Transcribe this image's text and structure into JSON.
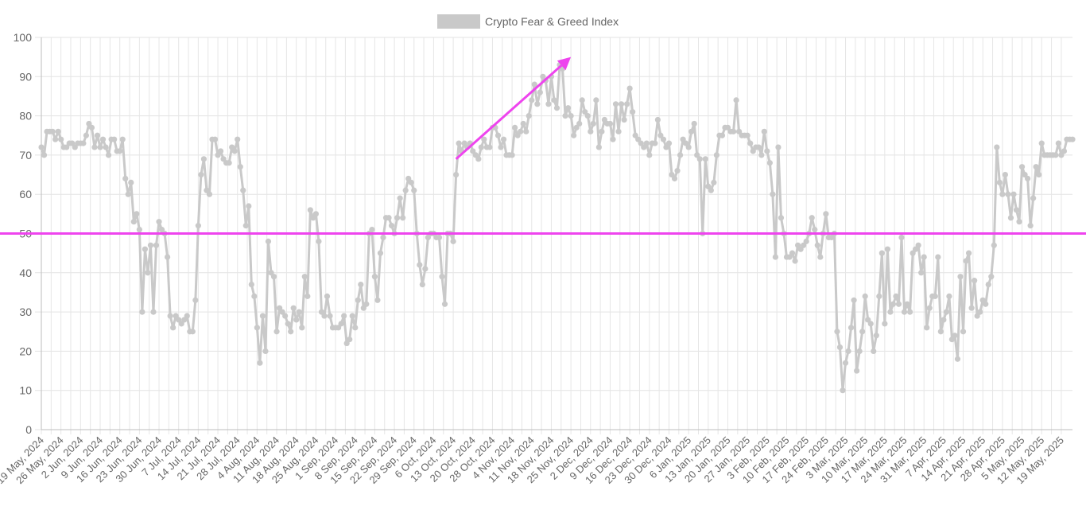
{
  "chart_data": {
    "type": "line",
    "title": "",
    "xlabel": "",
    "ylabel": "",
    "ylim": [
      0,
      100
    ],
    "yticks": [
      0,
      10,
      20,
      30,
      40,
      50,
      60,
      70,
      80,
      90,
      100
    ],
    "grid": true,
    "legend": {
      "position": "top-center",
      "label": "Crypto Fear & Greed Index",
      "color": "#c9c9c9"
    },
    "x_start_date": "2024-05-19",
    "x_tick_labels": [
      "19 May, 2024",
      "26 May, 2024",
      "2 Jun, 2024",
      "9 Jun, 2024",
      "16 Jun, 2024",
      "23 Jun, 2024",
      "30 Jun, 2024",
      "7 Jul, 2024",
      "14 Jul, 2024",
      "21 Jul, 2024",
      "28 Jul, 2024",
      "4 Aug, 2024",
      "11 Aug, 2024",
      "18 Aug, 2024",
      "25 Aug, 2024",
      "1 Sep, 2024",
      "8 Sep, 2024",
      "15 Sep, 2024",
      "22 Sep, 2024",
      "29 Sep, 2024",
      "6 Oct, 2024",
      "13 Oct, 2024",
      "20 Oct, 2024",
      "28 Oct, 2024",
      "4 Nov, 2024",
      "11 Nov, 2024",
      "18 Nov, 2024",
      "25 Nov, 2024",
      "2 Dec, 2024",
      "9 Dec, 2024",
      "16 Dec, 2024",
      "23 Dec, 2024",
      "30 Dec, 2024",
      "6 Jan, 2025",
      "13 Jan, 2025",
      "20 Jan, 2025",
      "27 Jan, 2025",
      "3 Feb, 2025",
      "10 Feb, 2025",
      "17 Feb, 2025",
      "24 Feb, 2025",
      "3 Mar, 2025",
      "10 Mar, 2025",
      "17 Mar, 2025",
      "24 Mar, 2025",
      "31 Mar, 2025",
      "7 Apr, 2025",
      "14 Apr, 2025",
      "21 Apr, 2025",
      "28 Apr, 2025",
      "5 May, 2025",
      "12 May, 2025",
      "19 May, 2025"
    ],
    "series": [
      {
        "name": "Crypto Fear & Greed Index",
        "color": "#c9c9c9",
        "values": [
          72,
          70,
          76,
          76,
          76,
          74,
          76,
          74,
          72,
          72,
          73,
          73,
          72,
          73,
          73,
          73,
          75,
          78,
          77,
          72,
          75,
          72,
          74,
          72,
          70,
          74,
          74,
          71,
          71,
          74,
          64,
          60,
          63,
          53,
          55,
          51,
          30,
          46,
          40,
          47,
          30,
          47,
          53,
          51,
          50,
          44,
          29,
          26,
          29,
          28,
          27,
          28,
          29,
          25,
          25,
          33,
          52,
          65,
          69,
          61,
          60,
          74,
          74,
          70,
          71,
          69,
          68,
          68,
          72,
          71,
          74,
          67,
          61,
          52,
          57,
          37,
          34,
          26,
          17,
          29,
          20,
          48,
          40,
          39,
          25,
          31,
          30,
          29,
          27,
          25,
          31,
          28,
          30,
          26,
          39,
          34,
          56,
          54,
          55,
          48,
          30,
          29,
          34,
          29,
          26,
          26,
          26,
          27,
          29,
          22,
          23,
          29,
          26,
          33,
          37,
          31,
          32,
          50,
          51,
          39,
          33,
          45,
          49,
          54,
          54,
          52,
          50,
          54,
          59,
          54,
          61,
          64,
          63,
          61,
          50,
          42,
          37,
          41,
          49,
          50,
          50,
          49,
          49,
          39,
          32,
          50,
          50,
          48,
          65,
          73,
          71,
          73,
          72,
          73,
          71,
          70,
          69,
          72,
          74,
          72,
          72,
          77,
          77,
          75,
          72,
          74,
          70,
          70,
          70,
          77,
          75,
          76,
          78,
          76,
          80,
          84,
          88,
          83,
          86,
          90,
          89,
          83,
          90,
          84,
          82,
          93,
          92,
          80,
          82,
          80,
          75,
          77,
          78,
          84,
          81,
          80,
          76,
          78,
          84,
          72,
          76,
          79,
          78,
          78,
          74,
          83,
          76,
          83,
          79,
          83,
          87,
          81,
          75,
          74,
          73,
          72,
          73,
          70,
          73,
          73,
          79,
          75,
          74,
          72,
          73,
          65,
          64,
          66,
          70,
          74,
          73,
          72,
          76,
          78,
          70,
          69,
          50,
          69,
          62,
          61,
          63,
          70,
          75,
          75,
          77,
          77,
          76,
          76,
          84,
          76,
          75,
          75,
          75,
          73,
          71,
          72,
          72,
          70,
          76,
          71,
          68,
          60,
          44,
          72,
          54,
          50,
          44,
          44,
          45,
          43,
          47,
          46,
          47,
          48,
          50,
          54,
          51,
          47,
          44,
          50,
          55,
          49,
          49,
          50,
          25,
          21,
          10,
          17,
          20,
          26,
          33,
          15,
          20,
          25,
          34,
          28,
          27,
          20,
          24,
          34,
          45,
          27,
          46,
          30,
          32,
          34,
          32,
          49,
          30,
          32,
          30,
          45,
          46,
          47,
          40,
          44,
          26,
          31,
          34,
          34,
          44,
          25,
          28,
          30,
          34,
          23,
          24,
          18,
          39,
          25,
          43,
          45,
          31,
          38,
          29,
          30,
          33,
          32,
          37,
          39,
          47,
          72,
          63,
          60,
          65,
          60,
          54,
          60,
          56,
          53,
          67,
          65,
          64,
          52,
          59,
          67,
          65,
          73,
          70,
          70,
          70,
          70,
          70,
          73,
          70,
          71,
          74,
          74,
          74
        ]
      }
    ]
  },
  "annotations": {
    "horizontal_line_value": 50,
    "horizontal_line_color": "#ee44ee",
    "arrow_color": "#ee44ee",
    "arrow_start": {
      "date": "2024-10-14",
      "value": 69
    },
    "arrow_end": {
      "date": "2024-11-24",
      "value": 95
    }
  }
}
